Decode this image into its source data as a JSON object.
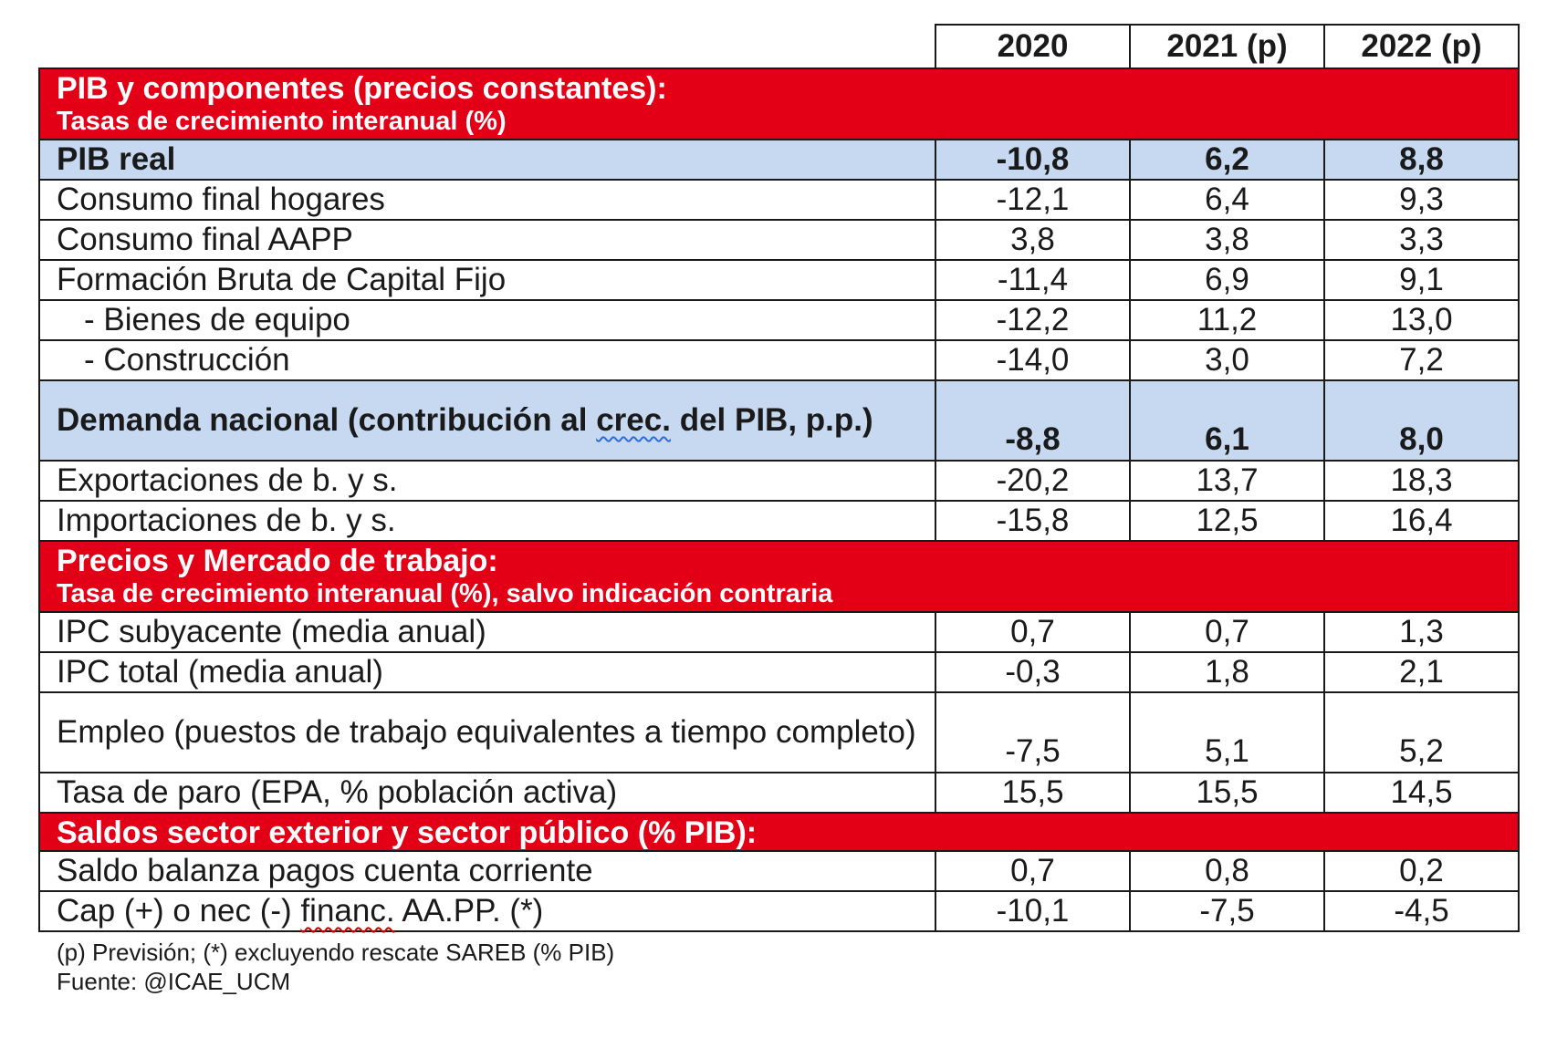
{
  "header": {
    "year_2020": "2020",
    "year_2021": "2021 (p)",
    "year_2022": "2022 (p)"
  },
  "sections": {
    "pib": {
      "title": "PIB y componentes (precios constantes):",
      "subtitle": "Tasas de crecimiento interanual (%)"
    },
    "precios": {
      "title": "Precios y Mercado de trabajo:",
      "subtitle": "Tasa de crecimiento interanual (%), salvo indicación contraria"
    },
    "saldos": {
      "title": "Saldos sector exterior y sector público (% PIB):"
    }
  },
  "rows": {
    "pib_real": {
      "label": "PIB real",
      "v2020": "-10,8",
      "v2021": "6,2",
      "v2022": "8,8"
    },
    "consumo_hogares": {
      "label": "Consumo final hogares",
      "v2020": "-12,1",
      "v2021": "6,4",
      "v2022": "9,3"
    },
    "consumo_aapp": {
      "label": "Consumo final AAPP",
      "v2020": "3,8",
      "v2021": "3,8",
      "v2022": "3,3"
    },
    "fbcf": {
      "label": "Formación Bruta de Capital Fijo",
      "v2020": "-11,4",
      "v2021": "6,9",
      "v2022": "9,1"
    },
    "bienes_equipo": {
      "label": "- Bienes de equipo",
      "v2020": "-12,2",
      "v2021": "11,2",
      "v2022": "13,0"
    },
    "construccion": {
      "label": "- Construcción",
      "v2020": "-14,0",
      "v2021": "3,0",
      "v2022": "7,2"
    },
    "demanda_nacional": {
      "label_pre": "Demanda nacional (contribución al ",
      "label_flag": "crec.",
      "label_post": " del PIB, p.p.)",
      "v2020": "-8,8",
      "v2021": "6,1",
      "v2022": "8,0"
    },
    "exportaciones": {
      "label": "Exportaciones de b. y s.",
      "v2020": "-20,2",
      "v2021": "13,7",
      "v2022": "18,3"
    },
    "importaciones": {
      "label": "Importaciones de b. y s.",
      "v2020": "-15,8",
      "v2021": "12,5",
      "v2022": "16,4"
    },
    "ipc_subyacente": {
      "label": "IPC subyacente (media anual)",
      "v2020": "0,7",
      "v2021": "0,7",
      "v2022": "1,3"
    },
    "ipc_total": {
      "label": "IPC total (media anual)",
      "v2020": "-0,3",
      "v2021": "1,8",
      "v2022": "2,1"
    },
    "empleo": {
      "label": "Empleo (puestos de trabajo equivalentes a tiempo completo)",
      "v2020": "-7,5",
      "v2021": "5,1",
      "v2022": "5,2"
    },
    "tasa_paro": {
      "label": "Tasa de paro (EPA, % población activa)",
      "v2020": "15,5",
      "v2021": "15,5",
      "v2022": "14,5"
    },
    "saldo_balanza": {
      "label": "Saldo balanza pagos cuenta corriente",
      "v2020": "0,7",
      "v2021": "0,8",
      "v2022": "0,2"
    },
    "cap_nec": {
      "label_pre": "Cap (+) o nec (-) ",
      "label_flag": "financ.",
      "label_post": " AA.PP. (*)",
      "v2020": "-10,1",
      "v2021": "-7,5",
      "v2022": "-4,5"
    }
  },
  "notes": {
    "footnote": "(p) Previsión; (*) excluyendo rescate SAREB (% PIB)",
    "source": "Fuente: @ICAE_UCM"
  },
  "colors": {
    "section_red": "#e30016",
    "highlight_blue": "#c6d9f1",
    "border": "#1a1a1a"
  }
}
